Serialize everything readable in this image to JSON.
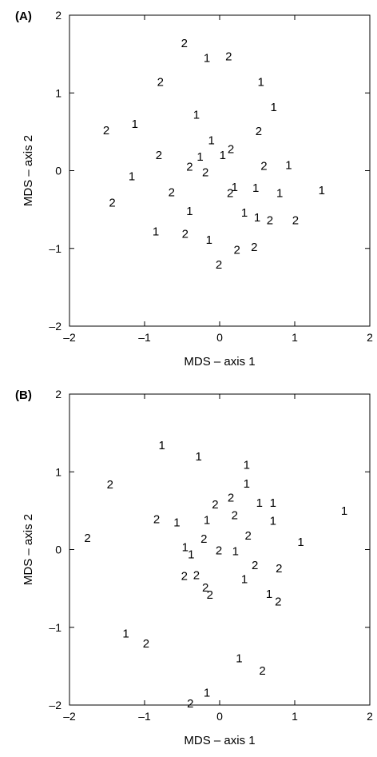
{
  "chart_data": [
    {
      "panel_label": "(A)",
      "type": "scatter",
      "xlabel": "MDS – axis 1",
      "ylabel": "MDS – axis 2",
      "xlim": [
        -2,
        2
      ],
      "ylim": [
        -2,
        2
      ],
      "xticks": [
        -2,
        -1,
        0,
        1,
        2
      ],
      "yticks": [
        -2,
        -1,
        0,
        1,
        2
      ],
      "xtick_labels": [
        "–2",
        "–1",
        "0",
        "1",
        "2"
      ],
      "ytick_labels": [
        "–2",
        "–1",
        "0",
        "1",
        "2"
      ],
      "grid": false,
      "marker": "group number as text",
      "points": [
        {
          "x": -0.47,
          "y": 1.64,
          "label": "2"
        },
        {
          "x": -0.17,
          "y": 1.45,
          "label": "1"
        },
        {
          "x": 0.12,
          "y": 1.47,
          "label": "2"
        },
        {
          "x": -0.79,
          "y": 1.14,
          "label": "2"
        },
        {
          "x": 0.55,
          "y": 1.14,
          "label": "1"
        },
        {
          "x": 0.72,
          "y": 0.82,
          "label": "1"
        },
        {
          "x": -0.31,
          "y": 0.72,
          "label": "1"
        },
        {
          "x": -1.13,
          "y": 0.6,
          "label": "1"
        },
        {
          "x": -1.51,
          "y": 0.52,
          "label": "2"
        },
        {
          "x": 0.52,
          "y": 0.51,
          "label": "2"
        },
        {
          "x": -0.11,
          "y": 0.39,
          "label": "1"
        },
        {
          "x": 0.15,
          "y": 0.28,
          "label": "2"
        },
        {
          "x": 0.04,
          "y": 0.2,
          "label": "1"
        },
        {
          "x": -0.26,
          "y": 0.18,
          "label": "1"
        },
        {
          "x": -0.81,
          "y": 0.2,
          "label": "2"
        },
        {
          "x": -0.4,
          "y": 0.05,
          "label": "2"
        },
        {
          "x": -0.19,
          "y": -0.02,
          "label": "2"
        },
        {
          "x": 0.59,
          "y": 0.06,
          "label": "2"
        },
        {
          "x": 0.92,
          "y": 0.07,
          "label": "1"
        },
        {
          "x": -1.17,
          "y": -0.07,
          "label": "1"
        },
        {
          "x": -0.64,
          "y": -0.28,
          "label": "2"
        },
        {
          "x": 0.2,
          "y": -0.21,
          "label": "1"
        },
        {
          "x": 0.14,
          "y": -0.29,
          "label": "2"
        },
        {
          "x": 0.48,
          "y": -0.22,
          "label": "1"
        },
        {
          "x": 0.8,
          "y": -0.29,
          "label": "1"
        },
        {
          "x": 1.36,
          "y": -0.25,
          "label": "1"
        },
        {
          "x": -1.43,
          "y": -0.41,
          "label": "2"
        },
        {
          "x": -0.4,
          "y": -0.52,
          "label": "1"
        },
        {
          "x": 0.33,
          "y": -0.54,
          "label": "1"
        },
        {
          "x": 0.5,
          "y": -0.6,
          "label": "1"
        },
        {
          "x": 0.67,
          "y": -0.64,
          "label": "2"
        },
        {
          "x": 1.01,
          "y": -0.64,
          "label": "2"
        },
        {
          "x": -0.85,
          "y": -0.78,
          "label": "1"
        },
        {
          "x": -0.46,
          "y": -0.81,
          "label": "2"
        },
        {
          "x": -0.14,
          "y": -0.89,
          "label": "1"
        },
        {
          "x": 0.23,
          "y": -1.02,
          "label": "2"
        },
        {
          "x": 0.46,
          "y": -0.98,
          "label": "2"
        },
        {
          "x": -0.01,
          "y": -1.21,
          "label": "2"
        }
      ]
    },
    {
      "panel_label": "(B)",
      "type": "scatter",
      "xlabel": "MDS – axis 1",
      "ylabel": "MDS – axis 2",
      "xlim": [
        -2,
        2
      ],
      "ylim": [
        -2,
        2
      ],
      "xticks": [
        -2,
        -1,
        0,
        1,
        2
      ],
      "yticks": [
        -2,
        -1,
        0,
        1,
        2
      ],
      "xtick_labels": [
        "–2",
        "–1",
        "0",
        "1",
        "2"
      ],
      "ytick_labels": [
        "–2",
        "–1",
        "0",
        "1",
        "2"
      ],
      "grid": false,
      "marker": "group number as text",
      "points": [
        {
          "x": -0.77,
          "y": 1.34,
          "label": "1"
        },
        {
          "x": -0.28,
          "y": 1.2,
          "label": "1"
        },
        {
          "x": 0.36,
          "y": 1.09,
          "label": "1"
        },
        {
          "x": -1.46,
          "y": 0.84,
          "label": "2"
        },
        {
          "x": 0.36,
          "y": 0.85,
          "label": "1"
        },
        {
          "x": 0.15,
          "y": 0.67,
          "label": "2"
        },
        {
          "x": -0.06,
          "y": 0.58,
          "label": "2"
        },
        {
          "x": 0.53,
          "y": 0.6,
          "label": "1"
        },
        {
          "x": 0.71,
          "y": 0.6,
          "label": "1"
        },
        {
          "x": 1.66,
          "y": 0.5,
          "label": "1"
        },
        {
          "x": 0.2,
          "y": 0.44,
          "label": "2"
        },
        {
          "x": -0.84,
          "y": 0.39,
          "label": "2"
        },
        {
          "x": -0.57,
          "y": 0.35,
          "label": "1"
        },
        {
          "x": -0.17,
          "y": 0.38,
          "label": "1"
        },
        {
          "x": 0.71,
          "y": 0.37,
          "label": "1"
        },
        {
          "x": -1.76,
          "y": 0.15,
          "label": "2"
        },
        {
          "x": 0.38,
          "y": 0.18,
          "label": "2"
        },
        {
          "x": -0.21,
          "y": 0.14,
          "label": "2"
        },
        {
          "x": 1.08,
          "y": 0.1,
          "label": "1"
        },
        {
          "x": -0.46,
          "y": 0.03,
          "label": "1"
        },
        {
          "x": -0.38,
          "y": -0.06,
          "label": "1"
        },
        {
          "x": -0.01,
          "y": -0.01,
          "label": "2"
        },
        {
          "x": 0.21,
          "y": -0.02,
          "label": "1"
        },
        {
          "x": 0.47,
          "y": -0.2,
          "label": "2"
        },
        {
          "x": 0.79,
          "y": -0.24,
          "label": "2"
        },
        {
          "x": -0.47,
          "y": -0.34,
          "label": "2"
        },
        {
          "x": -0.31,
          "y": -0.33,
          "label": "2"
        },
        {
          "x": 0.33,
          "y": -0.38,
          "label": "1"
        },
        {
          "x": -0.19,
          "y": -0.49,
          "label": "2"
        },
        {
          "x": -0.13,
          "y": -0.58,
          "label": "2"
        },
        {
          "x": 0.66,
          "y": -0.57,
          "label": "1"
        },
        {
          "x": 0.78,
          "y": -0.67,
          "label": "2"
        },
        {
          "x": -1.25,
          "y": -1.08,
          "label": "1"
        },
        {
          "x": -0.98,
          "y": -1.21,
          "label": "2"
        },
        {
          "x": 0.26,
          "y": -1.4,
          "label": "1"
        },
        {
          "x": 0.57,
          "y": -1.56,
          "label": "2"
        },
        {
          "x": -0.17,
          "y": -1.84,
          "label": "1"
        },
        {
          "x": -0.39,
          "y": -1.98,
          "label": "2"
        }
      ]
    }
  ]
}
